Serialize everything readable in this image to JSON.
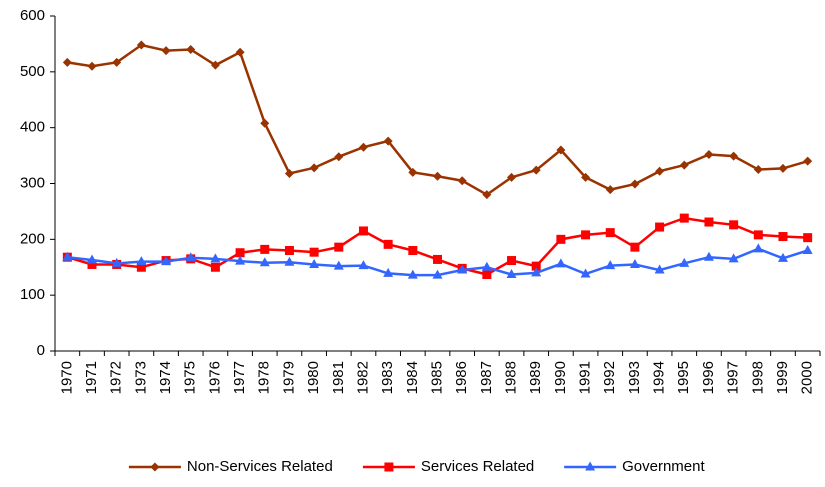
{
  "chart_data": {
    "type": "line",
    "categories": [
      "1970",
      "1971",
      "1972",
      "1973",
      "1974",
      "1975",
      "1976",
      "1977",
      "1978",
      "1979",
      "1980",
      "1981",
      "1982",
      "1983",
      "1984",
      "1985",
      "1986",
      "1987",
      "1988",
      "1989",
      "1990",
      "1991",
      "1992",
      "1993",
      "1994",
      "1995",
      "1996",
      "1997",
      "1998",
      "1999",
      "2000"
    ],
    "series": [
      {
        "name": "Non-Services Related",
        "color": "#993300",
        "marker": "diamond",
        "values": [
          517,
          510,
          517,
          548,
          538,
          540,
          512,
          535,
          408,
          318,
          328,
          348,
          365,
          376,
          320,
          313,
          305,
          280,
          311,
          324,
          360,
          311,
          289,
          299,
          322,
          333,
          352,
          349,
          325,
          327,
          340
        ]
      },
      {
        "name": "Services Related",
        "color": "#ff0000",
        "marker": "square",
        "values": [
          168,
          155,
          155,
          150,
          162,
          165,
          150,
          176,
          182,
          180,
          177,
          186,
          215,
          191,
          180,
          164,
          148,
          137,
          162,
          152,
          200,
          208,
          212,
          186,
          222,
          238,
          231,
          226,
          208,
          205,
          203
        ]
      },
      {
        "name": "Government",
        "color": "#3366ff",
        "marker": "triangle",
        "values": [
          168,
          163,
          157,
          160,
          160,
          167,
          165,
          161,
          158,
          159,
          155,
          152,
          153,
          139,
          136,
          136,
          145,
          150,
          137,
          140,
          156,
          138,
          153,
          155,
          145,
          157,
          168,
          165,
          183,
          166,
          180
        ]
      }
    ],
    "ylim": [
      0,
      600
    ],
    "yticks": [
      0,
      100,
      200,
      300,
      400,
      500,
      600
    ],
    "grid": false,
    "legend": "bottom"
  }
}
